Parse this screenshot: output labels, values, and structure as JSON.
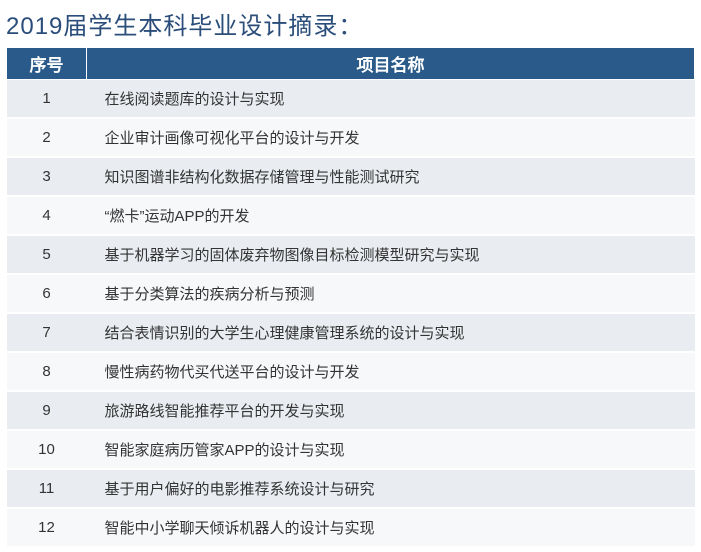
{
  "title": "2019届学生本科毕业设计摘录：",
  "title_color": "#2a4d7a",
  "title_fontsize": 24,
  "table": {
    "header_bg": "#2a5a8a",
    "header_fg": "#ffffff",
    "header_fontsize": 17,
    "row_bg_odd": "#e9edf1",
    "row_bg_even": "#f6f8fa",
    "cell_fontsize": 15,
    "cell_color": "#333333",
    "columns": [
      {
        "key": "seq",
        "label": "序号",
        "width": 80,
        "align": "center"
      },
      {
        "key": "name",
        "label": "项目名称",
        "align": "left"
      }
    ],
    "rows": [
      {
        "seq": "1",
        "name": "在线阅读题库的设计与实现"
      },
      {
        "seq": "2",
        "name": "企业审计画像可视化平台的设计与开发"
      },
      {
        "seq": "3",
        "name": "知识图谱非结构化数据存储管理与性能测试研究"
      },
      {
        "seq": "4",
        "name": "“燃卡”运动APP的开发"
      },
      {
        "seq": "5",
        "name": "基于机器学习的固体废弃物图像目标检测模型研究与实现"
      },
      {
        "seq": "6",
        "name": "基于分类算法的疾病分析与预测"
      },
      {
        "seq": "7",
        "name": "结合表情识别的大学生心理健康管理系统的设计与实现"
      },
      {
        "seq": "8",
        "name": "慢性病药物代买代送平台的设计与开发"
      },
      {
        "seq": "9",
        "name": "旅游路线智能推荐平台的开发与实现"
      },
      {
        "seq": "10",
        "name": "智能家庭病历管家APP的设计与实现"
      },
      {
        "seq": "11",
        "name": "基于用户偏好的电影推荐系统设计与研究"
      },
      {
        "seq": "12",
        "name": "智能中小学聊天倾诉机器人的设计与实现"
      }
    ]
  }
}
